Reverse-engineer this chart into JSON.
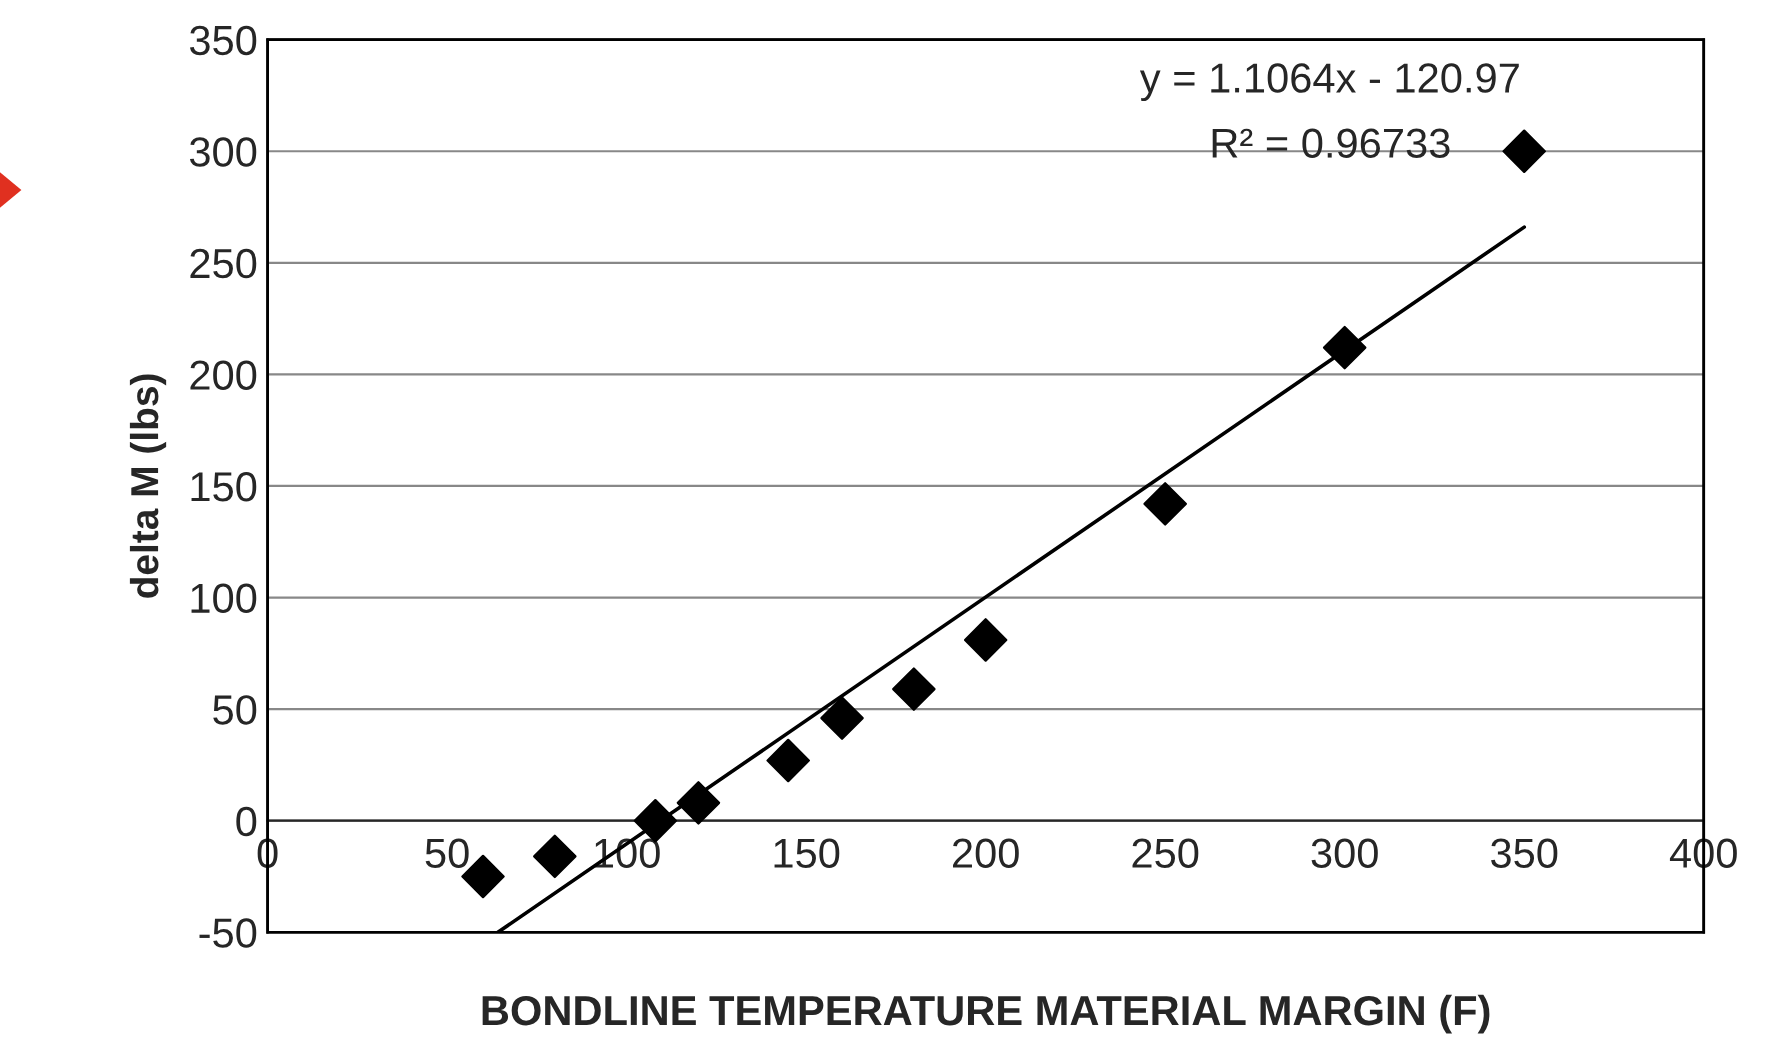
{
  "chart_data": {
    "type": "scatter",
    "xlabel": "BONDLINE TEMPERATURE MATERIAL MARGIN (F)",
    "ylabel": "delta M (lbs)",
    "x": [
      60,
      80,
      108,
      120,
      145,
      160,
      180,
      200,
      250,
      300,
      350
    ],
    "series": [
      {
        "color": "#000000",
        "marker": "diamond",
        "values": [
          -25,
          -16,
          0,
          8,
          27,
          46,
          59,
          81,
          142,
          212,
          300
        ]
      },
      {
        "type": "line",
        "color": "#000000",
        "marker": "none",
        "line_style": "solid",
        "x": [
          64.14,
          350
        ],
        "values": [
          -50,
          266
        ]
      }
    ],
    "annotations": [
      "y = 1.1064x - 120.97",
      "R² = 0.96733"
    ],
    "xlim": [
      0,
      400
    ],
    "xticks": [
      0,
      50,
      100,
      150,
      200,
      250,
      300,
      350,
      400
    ],
    "ylim": [
      -50,
      350
    ],
    "yticks": [
      -50,
      0,
      50,
      100,
      150,
      200,
      250,
      300,
      350
    ],
    "grid": "y",
    "legend": false
  }
}
